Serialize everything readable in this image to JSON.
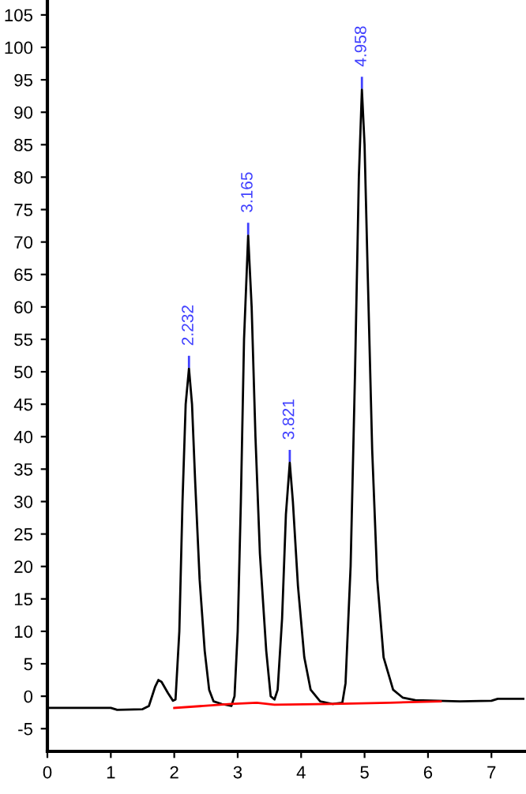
{
  "chart_data": {
    "type": "line",
    "xlim": [
      0,
      7.52
    ],
    "ylim": [
      -8.5,
      107.3
    ],
    "xticks": [
      0,
      1,
      2,
      3,
      4,
      5,
      6,
      7
    ],
    "yticks": [
      -5,
      0,
      5,
      10,
      15,
      20,
      25,
      30,
      35,
      40,
      45,
      50,
      55,
      60,
      65,
      70,
      75,
      80,
      85,
      90,
      95,
      100,
      105
    ],
    "grid": false,
    "legend": false,
    "marker": "none",
    "line_style": "solid",
    "series": [
      {
        "color": "#000000",
        "x": [
          0,
          1.0,
          1.1,
          1.5,
          1.6,
          1.7,
          1.75,
          1.8,
          1.9,
          1.98,
          2.02,
          2.08,
          2.13,
          2.18,
          2.232,
          2.28,
          2.33,
          2.4,
          2.48,
          2.55,
          2.62,
          2.75,
          2.9,
          2.95,
          3.0,
          3.05,
          3.1,
          3.165,
          3.22,
          3.28,
          3.35,
          3.45,
          3.52,
          3.58,
          3.63,
          3.7,
          3.76,
          3.821,
          3.87,
          3.95,
          4.05,
          4.15,
          4.3,
          4.5,
          4.65,
          4.7,
          4.78,
          4.85,
          4.91,
          4.958,
          5.0,
          5.05,
          5.12,
          5.2,
          5.3,
          5.45,
          5.6,
          5.8,
          6.5,
          7.0,
          7.1,
          7.52
        ],
        "values": [
          -1.8,
          -1.8,
          -2.1,
          -2.0,
          -1.5,
          1.5,
          2.5,
          2.2,
          0.5,
          -0.7,
          -0.5,
          10,
          30,
          45,
          50.5,
          45,
          33,
          18,
          7,
          1,
          -0.8,
          -1.2,
          -1.5,
          0,
          10,
          30,
          55,
          71,
          60,
          40,
          22,
          7,
          0,
          -0.5,
          1,
          12,
          28,
          36,
          30,
          17,
          6,
          1,
          -0.8,
          -1.2,
          -1.0,
          2,
          20,
          50,
          80,
          93.5,
          85,
          65,
          38,
          18,
          6,
          1,
          -0.2,
          -0.6,
          -0.8,
          -0.7,
          -0.4,
          -0.4
        ]
      },
      {
        "color": "#ff0000",
        "x": [
          2.0,
          2.9,
          3.3,
          3.58,
          4.5,
          5.4,
          6.2
        ],
        "values": [
          -1.8,
          -1.2,
          -1.0,
          -1.3,
          -1.2,
          -1.0,
          -0.8
        ]
      }
    ],
    "annotations": [
      {
        "text": "2.232",
        "x": 2.232,
        "y": 50.5
      },
      {
        "text": "3.165",
        "x": 3.165,
        "y": 71
      },
      {
        "text": "3.821",
        "x": 3.821,
        "y": 36
      },
      {
        "text": "4.958",
        "x": 4.958,
        "y": 93.5
      }
    ]
  }
}
